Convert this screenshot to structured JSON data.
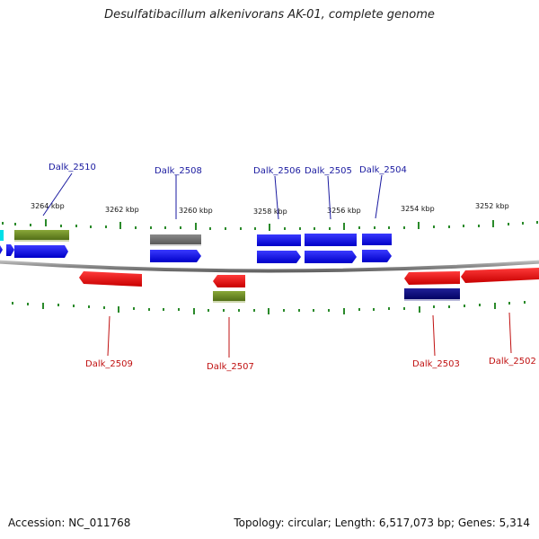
{
  "header": {
    "title": "Desulfatibacillum alkenivorans AK-01, complete genome"
  },
  "footer": {
    "accession": "Accession: NC_011768",
    "topology": "Topology: circular; Length: 6,517,073 bp; Genes: 5,314"
  },
  "scale": {
    "kbp_labels": [
      "3264 kbp",
      "3262 kbp",
      "3260 kbp",
      "3258 kbp",
      "3256 kbp",
      "3254 kbp",
      "3252 kbp"
    ]
  },
  "genes": {
    "forward": [
      "Dalk_2510",
      "Dalk_2508",
      "Dalk_2506",
      "Dalk_2505",
      "Dalk_2504"
    ],
    "reverse": [
      "Dalk_2509",
      "Dalk_2507",
      "Dalk_2503",
      "Dalk_2502"
    ]
  },
  "colors": {
    "cds_forward": "#0a0af0",
    "cds_reverse": "#f01010",
    "rrna_green": "#6a8a20",
    "pseudo_gray": "#707070",
    "navy": "#0a0a80",
    "cyan": "#00e0e8",
    "backbone": "#8a8a8a",
    "tick": "#2a8a2a"
  }
}
